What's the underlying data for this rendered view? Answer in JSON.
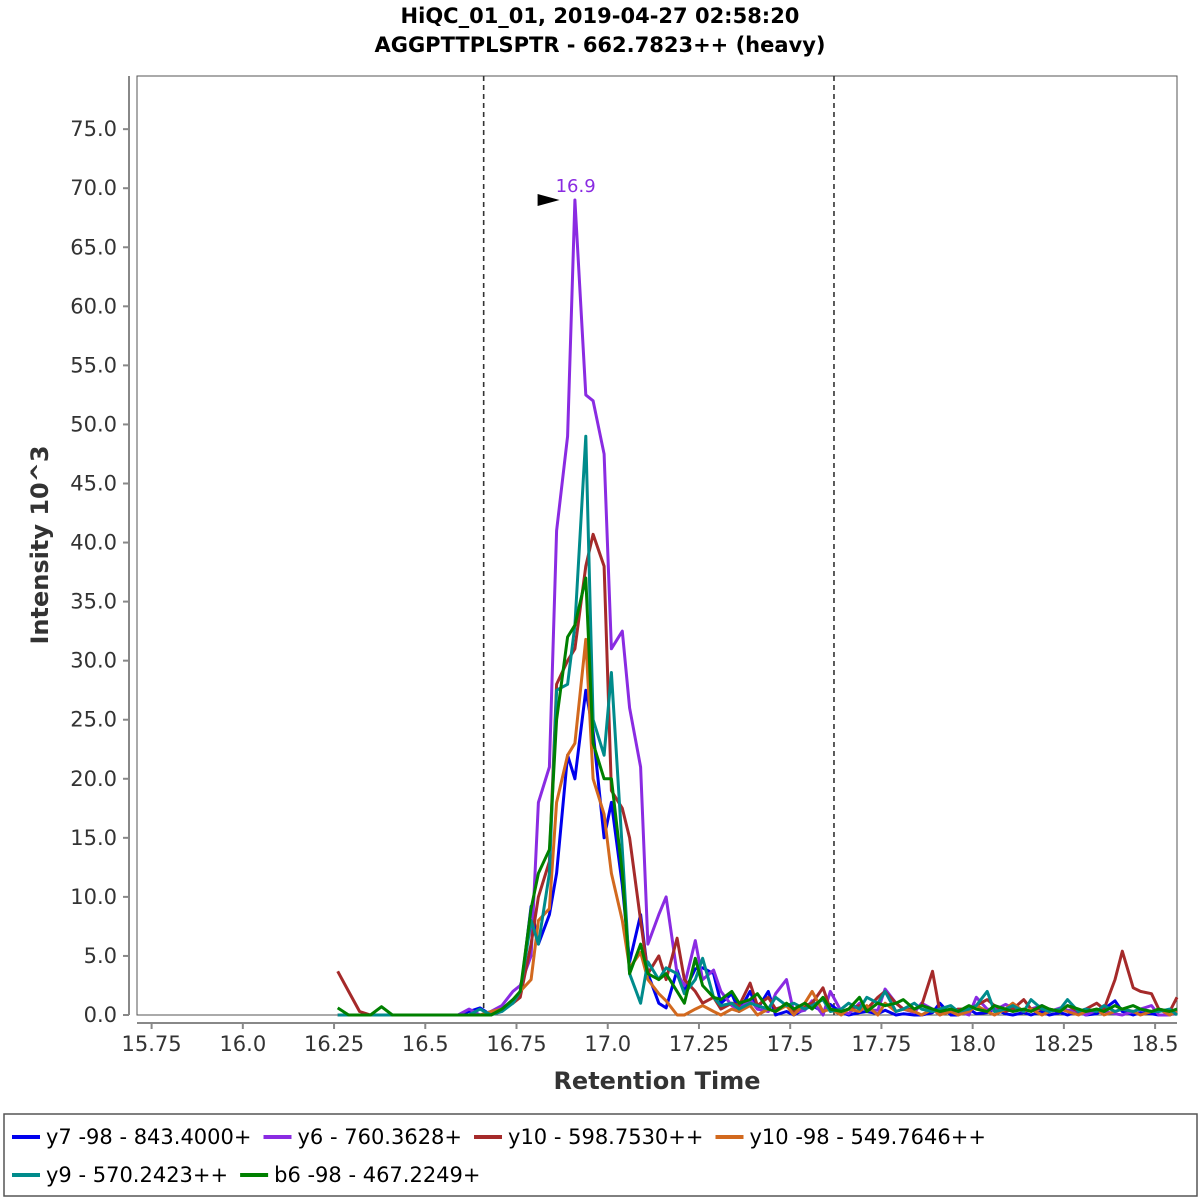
{
  "chart_data": {
    "type": "line",
    "title": "HiQC_01_01, 2019-04-27 02:58:20",
    "subtitle": "AGGPTTPLSPTR - 662.7823++ (heavy)",
    "xlabel": "Retention Time",
    "ylabel": "Intensity 10^3",
    "xlim": [
      15.71,
      18.56
    ],
    "ylim": [
      0,
      79.5
    ],
    "x_ticks": [
      "15.75",
      "16.0",
      "16.25",
      "16.5",
      "16.75",
      "17.0",
      "17.25",
      "17.5",
      "17.75",
      "18.0",
      "18.25",
      "18.5"
    ],
    "x_tick_values": [
      15.75,
      16.0,
      16.25,
      16.5,
      16.75,
      17.0,
      17.25,
      17.5,
      17.75,
      18.0,
      18.25,
      18.5
    ],
    "y_ticks": [
      "0.0",
      "5.0",
      "10.0",
      "15.0",
      "20.0",
      "25.0",
      "30.0",
      "35.0",
      "40.0",
      "45.0",
      "50.0",
      "55.0",
      "60.0",
      "65.0",
      "70.0",
      "75.0"
    ],
    "y_tick_values": [
      0,
      5,
      10,
      15,
      20,
      25,
      30,
      35,
      40,
      45,
      50,
      55,
      60,
      65,
      70,
      75
    ],
    "integration_boundaries": [
      16.66,
      17.62
    ],
    "peak_annotation": {
      "label": "16.9",
      "x": 16.89,
      "y": 69.0,
      "color": "#8a2be2"
    },
    "grid": false,
    "legend_position": "bottom",
    "x": [
      16.26,
      16.29,
      16.32,
      16.35,
      16.38,
      16.41,
      16.44,
      16.47,
      16.5,
      16.53,
      16.56,
      16.59,
      16.62,
      16.65,
      16.68,
      16.71,
      16.74,
      16.76,
      16.79,
      16.81,
      16.84,
      16.86,
      16.89,
      16.91,
      16.94,
      16.96,
      16.99,
      17.01,
      17.04,
      17.06,
      17.09,
      17.11,
      17.14,
      17.16,
      17.19,
      17.21,
      17.24,
      17.26,
      17.29,
      17.31,
      17.34,
      17.36,
      17.39,
      17.41,
      17.44,
      17.46,
      17.49,
      17.51,
      17.54,
      17.56,
      17.59,
      17.61,
      17.64,
      17.66,
      17.69,
      17.71,
      17.74,
      17.76,
      17.79,
      17.81,
      17.84,
      17.86,
      17.89,
      17.91,
      17.94,
      17.96,
      17.99,
      18.01,
      18.04,
      18.06,
      18.09,
      18.11,
      18.14,
      18.16,
      18.19,
      18.21,
      18.24,
      18.26,
      18.29,
      18.31,
      18.34,
      18.36,
      18.39,
      18.41,
      18.44,
      18.46,
      18.49,
      18.51,
      18.54,
      18.56
    ],
    "series": [
      {
        "name": "y7 -98 - 843.4000+",
        "color": "#0000ee",
        "values": [
          0.0,
          0.0,
          0.0,
          0.0,
          0.0,
          0.0,
          0.0,
          0.0,
          0.0,
          0.0,
          0.0,
          0.0,
          0.3,
          0.6,
          0.0,
          0.5,
          1.3,
          1.6,
          9.2,
          6.0,
          8.5,
          12.0,
          22.0,
          20.0,
          27.5,
          24.0,
          15.0,
          18.0,
          11.0,
          4.5,
          8.5,
          3.5,
          1.0,
          0.6,
          3.8,
          2.0,
          3.9,
          4.0,
          3.5,
          1.0,
          1.8,
          0.3,
          2.0,
          0.5,
          2.0,
          0.0,
          0.3,
          0.0,
          0.5,
          0.8,
          0.3,
          0.9,
          0.2,
          0.0,
          0.2,
          0.3,
          0.1,
          0.4,
          0.0,
          0.1,
          0.0,
          0.0,
          0.2,
          1.0,
          0.0,
          0.0,
          0.5,
          0.1,
          0.2,
          0.5,
          0.1,
          0.0,
          0.2,
          0.0,
          0.3,
          0.0,
          0.2,
          0.0,
          0.3,
          0.0,
          0.1,
          0.5,
          1.2,
          0.3,
          0.0,
          0.2,
          0.1,
          0.0,
          0.0,
          0.2
        ]
      },
      {
        "name": "y6 - 760.3628+",
        "color": "#8a2be2",
        "values": [
          0.0,
          0.0,
          0.0,
          0.0,
          0.0,
          0.0,
          0.0,
          0.0,
          0.0,
          0.0,
          0.0,
          0.0,
          0.5,
          0.0,
          0.3,
          0.8,
          2.0,
          2.5,
          5.0,
          18.0,
          21.0,
          41.0,
          49.0,
          69.0,
          52.5,
          52.0,
          47.5,
          31.0,
          32.5,
          26.0,
          21.0,
          6.0,
          8.5,
          10.0,
          3.5,
          2.5,
          6.3,
          3.0,
          3.8,
          2.0,
          0.8,
          0.5,
          1.3,
          0.5,
          0.3,
          1.8,
          3.0,
          0.2,
          0.4,
          1.2,
          0.0,
          2.0,
          0.3,
          0.1,
          1.0,
          0.4,
          0.4,
          2.2,
          1.0,
          0.5,
          0.2,
          1.0,
          0.5,
          0.0,
          0.5,
          0.3,
          0.0,
          1.5,
          0.5,
          0.4,
          0.9,
          0.6,
          0.3,
          0.5,
          0.8,
          0.3,
          0.6,
          0.4,
          0.3,
          0.0,
          0.4,
          0.3,
          0.1,
          0.0,
          0.3,
          0.5,
          0.8,
          0.0,
          0.0,
          0.3
        ]
      },
      {
        "name": "y10 - 598.7530++",
        "color": "#a52a2a",
        "values": [
          3.7,
          2.0,
          0.3,
          0.0,
          0.0,
          0.0,
          0.0,
          0.0,
          0.0,
          0.0,
          0.0,
          0.0,
          0.0,
          0.0,
          0.0,
          0.5,
          1.0,
          1.5,
          6.0,
          10.0,
          13.0,
          28.0,
          30.0,
          31.0,
          38.0,
          40.7,
          38.0,
          19.0,
          17.5,
          15.0,
          8.0,
          3.5,
          5.0,
          3.0,
          6.5,
          3.0,
          2.0,
          1.0,
          1.5,
          0.5,
          1.0,
          0.8,
          2.7,
          0.8,
          1.5,
          0.5,
          0.8,
          0.3,
          0.8,
          1.0,
          2.3,
          0.5,
          0.3,
          0.5,
          0.8,
          0.5,
          1.5,
          2.0,
          1.0,
          0.5,
          0.5,
          0.8,
          3.7,
          0.3,
          0.3,
          0.5,
          0.5,
          0.8,
          1.3,
          0.8,
          0.3,
          0.5,
          1.3,
          0.5,
          0.5,
          0.5,
          0.3,
          0.8,
          0.3,
          0.5,
          1.0,
          0.5,
          3.0,
          5.4,
          2.3,
          2.0,
          1.8,
          0.5,
          0.3,
          1.5
        ]
      },
      {
        "name": "y10 -98 - 549.7646++",
        "color": "#d2691e",
        "values": [
          0.0,
          0.0,
          0.0,
          0.0,
          0.0,
          0.0,
          0.0,
          0.0,
          0.0,
          0.0,
          0.0,
          0.0,
          0.0,
          0.0,
          0.3,
          0.5,
          1.0,
          2.0,
          3.0,
          8.0,
          9.0,
          18.0,
          22.0,
          23.0,
          31.8,
          20.0,
          17.0,
          12.0,
          8.0,
          4.0,
          5.3,
          3.0,
          1.8,
          1.2,
          0.0,
          0.0,
          0.5,
          0.8,
          0.3,
          0.0,
          0.5,
          0.3,
          0.8,
          0.0,
          0.5,
          0.3,
          0.8,
          0.0,
          1.0,
          2.0,
          0.3,
          0.5,
          0.0,
          0.5,
          0.3,
          0.8,
          0.0,
          1.0,
          0.3,
          0.5,
          0.3,
          0.0,
          0.5,
          0.0,
          0.3,
          0.0,
          0.3,
          0.8,
          0.3,
          0.0,
          0.5,
          1.0,
          0.3,
          0.5,
          0.0,
          0.3,
          0.5,
          0.3,
          0.0,
          0.3,
          0.5,
          0.0,
          0.3,
          0.5,
          0.3,
          0.0,
          0.3,
          0.5,
          0.0,
          0.3
        ]
      },
      {
        "name": "y9 - 570.2423++",
        "color": "#008b8b",
        "values": [
          0.0,
          0.0,
          0.0,
          0.0,
          0.0,
          0.0,
          0.0,
          0.0,
          0.0,
          0.0,
          0.0,
          0.0,
          0.0,
          0.5,
          0.0,
          0.3,
          1.0,
          2.0,
          8.0,
          6.0,
          12.0,
          27.5,
          28.0,
          33.0,
          49.0,
          25.0,
          22.0,
          29.0,
          14.0,
          3.5,
          1.0,
          4.5,
          3.0,
          4.0,
          3.5,
          1.8,
          3.0,
          4.8,
          1.5,
          0.8,
          1.0,
          0.5,
          1.0,
          0.8,
          0.5,
          1.5,
          0.8,
          1.0,
          0.5,
          0.8,
          1.3,
          0.3,
          0.5,
          1.0,
          0.5,
          1.5,
          1.0,
          2.0,
          0.3,
          0.5,
          1.0,
          0.5,
          0.3,
          0.5,
          0.8,
          0.3,
          0.5,
          0.8,
          2.0,
          0.3,
          0.5,
          0.8,
          0.3,
          1.3,
          0.5,
          0.3,
          0.5,
          1.3,
          0.3,
          0.5,
          0.3,
          0.8,
          0.3,
          0.5,
          0.3,
          0.5,
          0.3,
          0.3,
          0.5,
          0.0
        ]
      },
      {
        "name": "b6 -98 - 467.2249+",
        "color": "#008000",
        "values": [
          0.6,
          0.0,
          0.0,
          0.0,
          0.7,
          0.0,
          0.0,
          0.0,
          0.0,
          0.0,
          0.0,
          0.0,
          0.0,
          0.0,
          0.0,
          0.5,
          1.3,
          2.0,
          9.0,
          12.0,
          14.0,
          25.0,
          32.0,
          33.0,
          37.0,
          23.0,
          20.0,
          20.0,
          12.0,
          3.5,
          6.0,
          3.5,
          3.0,
          3.5,
          2.0,
          1.0,
          4.8,
          2.5,
          1.5,
          1.3,
          2.0,
          1.0,
          1.3,
          1.8,
          0.5,
          0.3,
          1.0,
          0.5,
          1.0,
          0.5,
          1.5,
          0.5,
          0.3,
          0.5,
          1.5,
          0.3,
          1.0,
          0.8,
          1.0,
          1.3,
          0.5,
          0.8,
          0.5,
          0.3,
          0.5,
          0.3,
          0.8,
          0.5,
          0.3,
          0.8,
          0.5,
          0.3,
          0.5,
          0.3,
          0.8,
          0.5,
          0.3,
          0.8,
          0.5,
          0.3,
          0.5,
          0.3,
          0.8,
          0.5,
          0.8,
          0.5,
          0.3,
          0.5,
          0.3,
          0.5
        ]
      }
    ]
  }
}
